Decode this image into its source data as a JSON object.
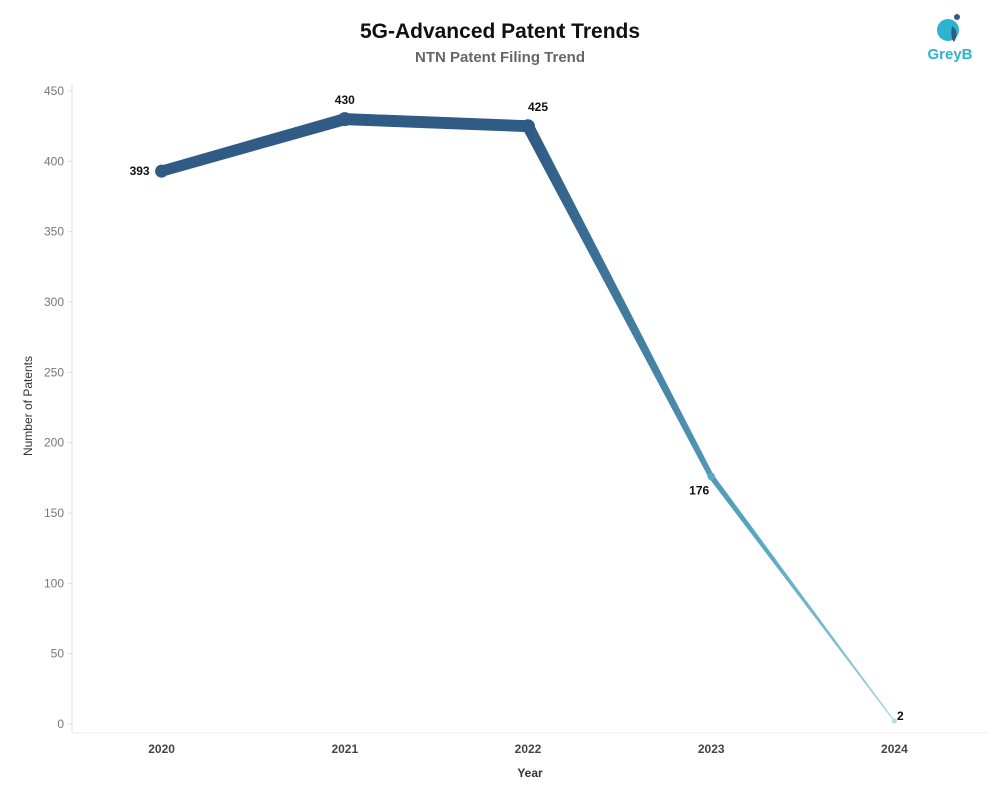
{
  "header": {
    "title": "5G-Advanced Patent Trends",
    "subtitle": "NTN Patent Filing Trend"
  },
  "logo": {
    "text": "GreyB",
    "color": "#2bb3d0"
  },
  "chart_data": {
    "type": "line",
    "categories": [
      "2020",
      "2021",
      "2022",
      "2023",
      "2024"
    ],
    "values": [
      393,
      430,
      425,
      176,
      2
    ],
    "xlabel": "Year",
    "ylabel": "Number of Patents",
    "ylim": [
      0,
      450
    ],
    "yticks": [
      0,
      50,
      100,
      150,
      200,
      250,
      300,
      350,
      400,
      450
    ],
    "grid": false,
    "colors": {
      "dark": "#2f5b84",
      "mid": "#5aa9c3",
      "light": "#b8dde5"
    }
  }
}
